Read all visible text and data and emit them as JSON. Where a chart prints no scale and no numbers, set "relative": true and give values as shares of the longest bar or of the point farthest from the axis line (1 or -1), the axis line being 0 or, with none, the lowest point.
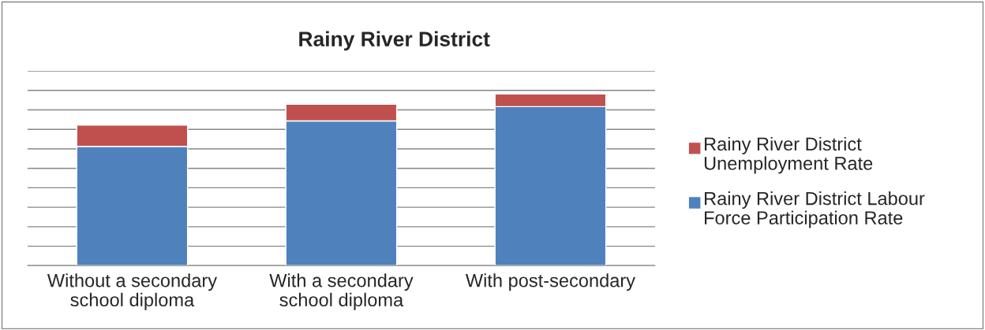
{
  "chart_data": {
    "type": "bar",
    "title": "Rainy River District",
    "categories": [
      "Without a secondary school diploma",
      "With a secondary school diploma",
      "With post-secondary"
    ],
    "stacked": true,
    "relative": true,
    "grid": "y",
    "legend": "right",
    "series": [
      {
        "name": "Rainy River District Labour Force Participation Rate",
        "color": "#4f81bd",
        "values": [
          0.694,
          0.843,
          0.926
        ]
      },
      {
        "name": "Rainy River District Unemployment Rate",
        "color": "#c0504d",
        "values": [
          0.125,
          0.097,
          0.074
        ]
      }
    ]
  }
}
